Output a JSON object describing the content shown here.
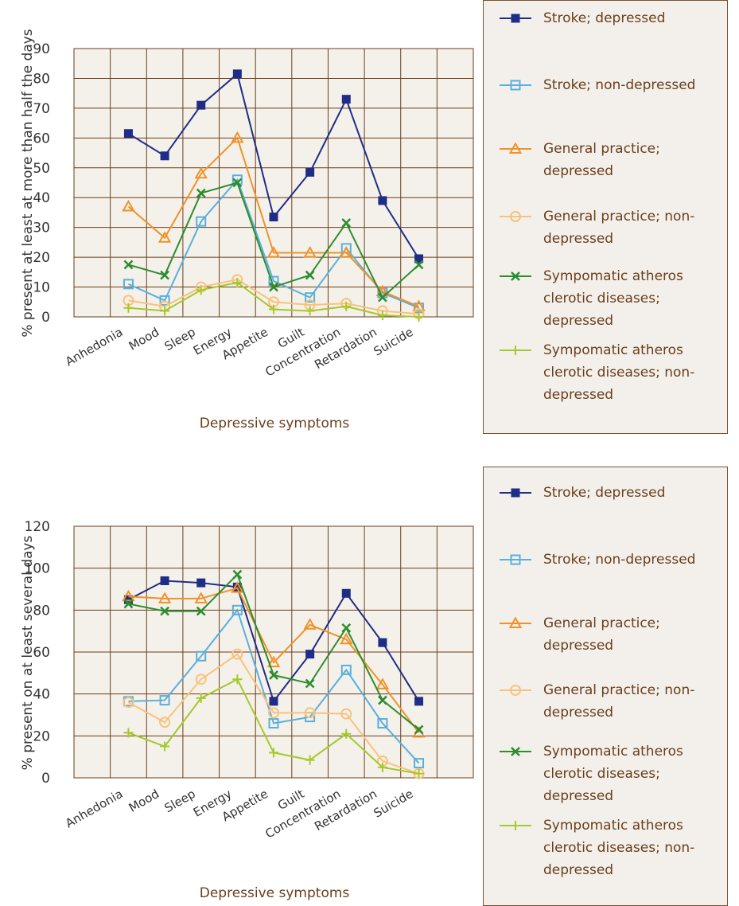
{
  "chart_data": [
    {
      "type": "line",
      "x_label": "Depressive symptoms",
      "y_label": "% present at least at more than half the days",
      "categories": [
        "Anhedonia",
        "Mood",
        "Sleep",
        "Energy",
        "Appetite",
        "Guilt",
        "Concentration",
        "Retardation",
        "Suicide"
      ],
      "ylim": [
        0,
        90
      ],
      "yticks": [
        0,
        10,
        20,
        30,
        40,
        50,
        60,
        70,
        80,
        90
      ],
      "grid": true,
      "series": [
        {
          "name": "Stroke; depressed",
          "color": "#1f2d86",
          "marker": "square-filled",
          "values": [
            61.5,
            54,
            71,
            81.5,
            33.5,
            48.5,
            73,
            39,
            19.5
          ]
        },
        {
          "name": "Stroke; non-depressed",
          "color": "#5aafdc",
          "marker": "square",
          "values": [
            11,
            5.5,
            32,
            46,
            12,
            6.5,
            23,
            8,
            3
          ]
        },
        {
          "name": "General practice; depressed",
          "color": "#f0922a",
          "marker": "triangle",
          "values": [
            37,
            26.5,
            48,
            60,
            21.5,
            21.5,
            21.5,
            8.5,
            3.5
          ]
        },
        {
          "name": "General practice; non-depressed",
          "color": "#f8c27c",
          "marker": "circle",
          "values": [
            5.5,
            3.5,
            10,
            12.5,
            5,
            4,
            4.5,
            2,
            1
          ]
        },
        {
          "name": "Sympomatic atheros clerotic diseases; depressed",
          "color": "#2e8c2e",
          "marker": "x",
          "values": [
            17.5,
            14,
            41.5,
            45,
            10,
            14,
            31.5,
            6.5,
            17.5
          ]
        },
        {
          "name": "Sympomatic atheros clerotic diseases; non-depressed",
          "color": "#a5c82a",
          "marker": "plus",
          "values": [
            3,
            2,
            9,
            11.5,
            2.5,
            2,
            3.5,
            0.5,
            0
          ]
        }
      ]
    },
    {
      "type": "line",
      "x_label": "Depressive symptoms",
      "y_label": "% present on at least several days",
      "categories": [
        "Anhedonia",
        "Mood",
        "Sleep",
        "Energy",
        "Appetite",
        "Guilt",
        "Concentration",
        "Retardation",
        "Suicide"
      ],
      "ylim": [
        0,
        120
      ],
      "yticks": [
        0,
        20,
        40,
        60,
        80,
        100,
        120
      ],
      "grid": true,
      "series": [
        {
          "name": "Stroke; depressed",
          "color": "#1f2d86",
          "marker": "square-filled",
          "values": [
            85,
            94,
            93,
            91,
            36.5,
            59,
            88,
            64.5,
            36.5
          ]
        },
        {
          "name": "Stroke; non-depressed",
          "color": "#5aafdc",
          "marker": "square",
          "values": [
            36.5,
            37,
            58,
            80,
            26,
            29,
            51.5,
            26,
            7
          ]
        },
        {
          "name": "General practice; depressed",
          "color": "#f0922a",
          "marker": "triangle",
          "values": [
            86.5,
            85.5,
            85.5,
            90.5,
            55,
            73,
            66,
            44.5,
            21.5
          ]
        },
        {
          "name": "General practice; non-depressed",
          "color": "#f8c27c",
          "marker": "circle",
          "values": [
            36,
            26.5,
            47,
            59,
            31,
            31,
            30.5,
            8,
            2
          ]
        },
        {
          "name": "Sympomatic atheros clerotic diseases; depressed",
          "color": "#2e8c2e",
          "marker": "x",
          "values": [
            83,
            79.5,
            79.5,
            97,
            49,
            45,
            71.5,
            37,
            23
          ]
        },
        {
          "name": "Sympomatic atheros clerotic diseases; non-depressed",
          "color": "#a5c82a",
          "marker": "plus",
          "values": [
            21.5,
            15,
            38,
            47,
            12,
            8.5,
            21,
            5,
            2
          ]
        }
      ]
    }
  ]
}
